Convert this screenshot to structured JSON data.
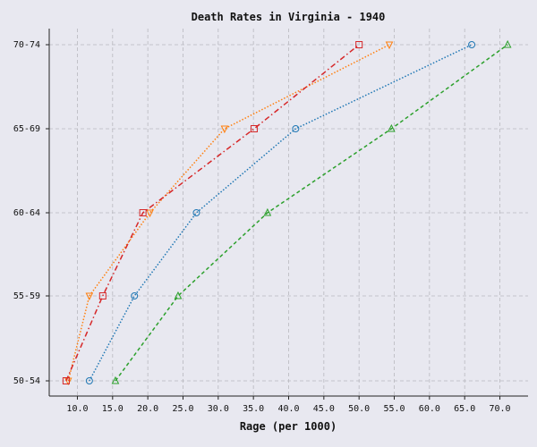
{
  "chart_data": {
    "type": "line",
    "title": "Death Rates in Virginia - 1940",
    "xlabel": "Rage (per 1000)",
    "ylabel": "",
    "xlim": [
      6.0,
      74.0
    ],
    "x_ticks": [
      "10.0",
      "15.0",
      "20.0",
      "25.0",
      "30.0",
      "35.0",
      "40.0",
      "45.0",
      "50.0",
      "55.0",
      "60.0",
      "65.0",
      "70.0"
    ],
    "categories": [
      "50-54",
      "55-59",
      "60-64",
      "65-69",
      "70-74"
    ],
    "grid": true,
    "series": [
      {
        "color": "#1f77b4",
        "marker": "circle",
        "line_style": "dotted",
        "values": [
          11.7,
          18.1,
          26.9,
          41.0,
          66.0
        ]
      },
      {
        "color": "#ff7f0e",
        "marker": "triangle-down",
        "line_style": "dotted",
        "values": [
          8.7,
          11.7,
          20.3,
          30.9,
          54.3
        ]
      },
      {
        "color": "#2ca02c",
        "marker": "triangle-up",
        "line_style": "dashed",
        "values": [
          15.4,
          24.3,
          37.0,
          54.6,
          71.1
        ]
      },
      {
        "color": "#d62728",
        "marker": "square",
        "line_style": "dash-dot",
        "values": [
          8.4,
          13.6,
          19.3,
          35.1,
          50.0
        ]
      }
    ]
  }
}
